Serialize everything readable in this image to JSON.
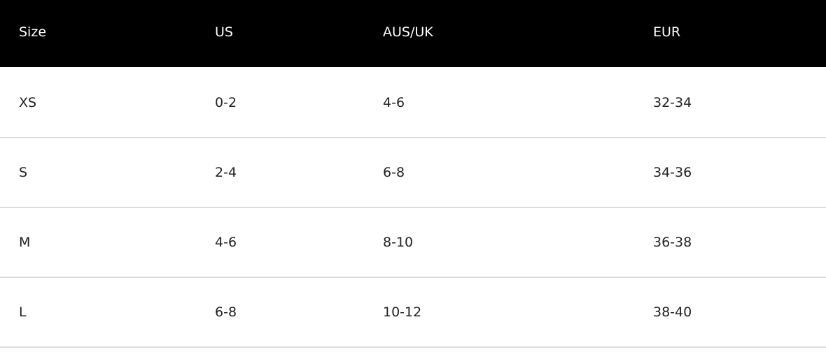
{
  "table": {
    "headers": [
      "Size",
      "US",
      "AUS/UK",
      "EUR"
    ],
    "rows": [
      [
        "XS",
        "0-2",
        "4-6",
        "32-34"
      ],
      [
        "S",
        "2-4",
        "6-8",
        "34-36"
      ],
      [
        "M",
        "4-6",
        "8-10",
        "36-38"
      ],
      [
        "L",
        "6-8",
        "10-12",
        "38-40"
      ]
    ]
  }
}
